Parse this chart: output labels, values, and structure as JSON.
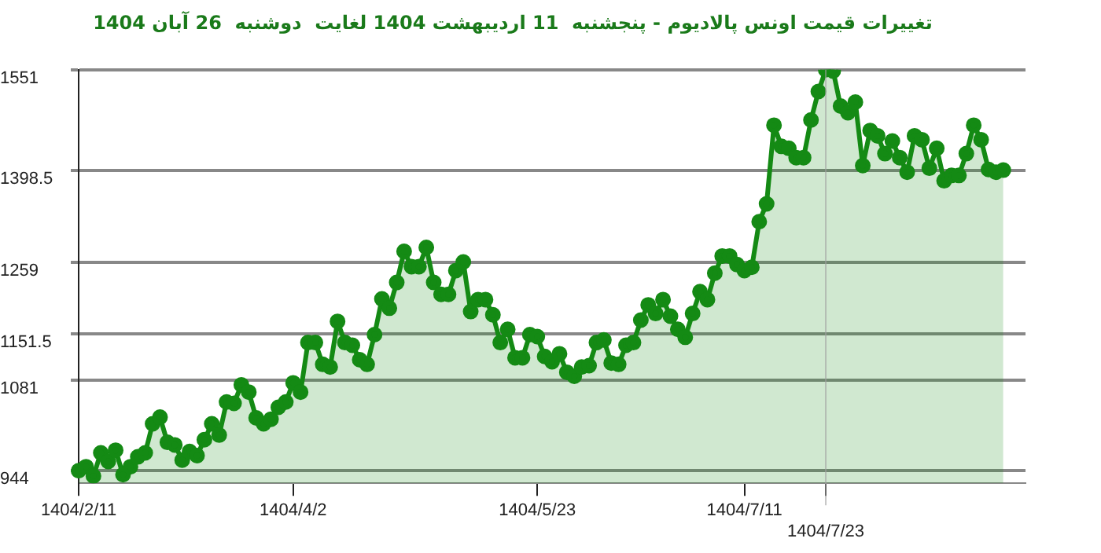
{
  "chart_data": {
    "type": "area",
    "title": "تغییرات قیمت اونس پالادیوم - پنجشنبه  11 اردیبهشت 1404 لغایت  دوشنبه  26 آبان 1404",
    "marker": "circle",
    "grid": "y",
    "legend": false,
    "categories": [
      "1404/2/11",
      null,
      null,
      null,
      null,
      null,
      null,
      null,
      null,
      null,
      null,
      null,
      null,
      null,
      null,
      null,
      null,
      null,
      null,
      null,
      null,
      null,
      null,
      null,
      null,
      null,
      null,
      null,
      null,
      "1404/4/2",
      null,
      null,
      null,
      null,
      null,
      null,
      null,
      null,
      null,
      null,
      null,
      null,
      null,
      null,
      null,
      null,
      null,
      null,
      null,
      null,
      null,
      null,
      null,
      null,
      null,
      null,
      null,
      null,
      null,
      null,
      null,
      null,
      "1404/5/23",
      null,
      null,
      null,
      null,
      null,
      null,
      null,
      null,
      null,
      null,
      null,
      null,
      null,
      null,
      null,
      null,
      null,
      null,
      null,
      null,
      null,
      null,
      null,
      null,
      null,
      null,
      null,
      "1404/7/11",
      null,
      null,
      null,
      null,
      null,
      null,
      null,
      null,
      null,
      null,
      "1404/7/23",
      null,
      null,
      null,
      null,
      null,
      null,
      null,
      null,
      null,
      null,
      null,
      null,
      null,
      null,
      null,
      null,
      null,
      null,
      null,
      null,
      null,
      null,
      null,
      null,
      null,
      null,
      null
    ],
    "ylim": [
      925,
      1551
    ],
    "yticks": [
      944,
      1081,
      1151.5,
      1259,
      1398.5,
      1551
    ],
    "ref_lines": [
      {
        "axis": "x",
        "value": "1404/7/23"
      }
    ],
    "series": [
      {
        "color": "#148a14",
        "values": [
          944,
          950,
          936,
          971,
          958,
          975,
          938,
          950,
          965,
          971,
          1015,
          1025,
          987,
          983,
          960,
          973,
          967,
          991,
          1015,
          998,
          1048,
          1046,
          1074,
          1063,
          1024,
          1015,
          1022,
          1040,
          1048,
          1077,
          1063,
          1138,
          1138,
          1105,
          1101,
          1170,
          1138,
          1134,
          1112,
          1105,
          1150,
          1204,
          1190,
          1229,
          1276,
          1253,
          1253,
          1282,
          1229,
          1211,
          1211,
          1247,
          1260,
          1185,
          1203,
          1203,
          1180,
          1138,
          1158,
          1115,
          1115,
          1150,
          1147,
          1117,
          1109,
          1121,
          1093,
          1087,
          1101,
          1103,
          1138,
          1142,
          1107,
          1105,
          1134,
          1138,
          1172,
          1195,
          1182,
          1203,
          1178,
          1158,
          1146,
          1182,
          1215,
          1203,
          1243,
          1269,
          1269,
          1256,
          1247,
          1252,
          1321,
          1348,
          1467,
          1435,
          1432,
          1418,
          1418,
          1475,
          1518,
          1551,
          1549,
          1496,
          1486,
          1502,
          1406,
          1459,
          1451,
          1424,
          1443,
          1418,
          1396,
          1451,
          1445,
          1402,
          1432,
          1383,
          1391,
          1391,
          1424,
          1467,
          1445,
          1400,
          1396,
          1399,
          null,
          null,
          null
        ]
      }
    ]
  }
}
